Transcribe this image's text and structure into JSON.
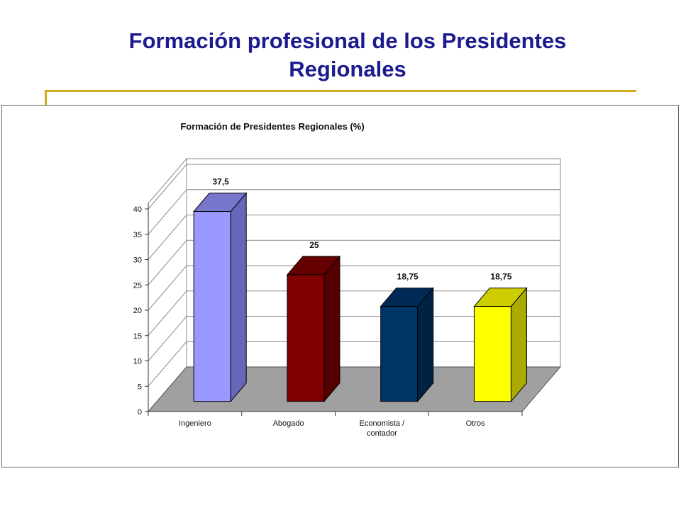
{
  "slide": {
    "title_line1": "Formación profesional de los Presidentes",
    "title_line2": "Regionales",
    "accent_color": "#d4aa1a",
    "title_color": "#1c1a8e"
  },
  "chart_data": {
    "type": "bar",
    "title": "Formación de Presidentes Regionales (%)",
    "categories": [
      [
        "Ingeniero"
      ],
      [
        "Abogado"
      ],
      [
        "Economista /",
        "contador"
      ],
      [
        "Otros"
      ]
    ],
    "values": [
      37.5,
      25,
      18.75,
      18.75
    ],
    "value_labels": [
      "37,5",
      "25",
      "18,75",
      "18,75"
    ],
    "colors": [
      {
        "front": "#9999ff",
        "side": "#6666bb",
        "top": "#7777cc"
      },
      {
        "front": "#800000",
        "side": "#550000",
        "top": "#660000"
      },
      {
        "front": "#003366",
        "side": "#002244",
        "top": "#002a55"
      },
      {
        "front": "#ffff00",
        "side": "#aaaa00",
        "top": "#cccc00"
      }
    ],
    "ylim": [
      0,
      40
    ],
    "yticks": [
      0,
      5,
      10,
      15,
      20,
      25,
      30,
      35,
      40
    ],
    "xlabel": "",
    "ylabel": "",
    "grid": true,
    "projection": "3d",
    "floor_color": "#a0a0a0"
  }
}
